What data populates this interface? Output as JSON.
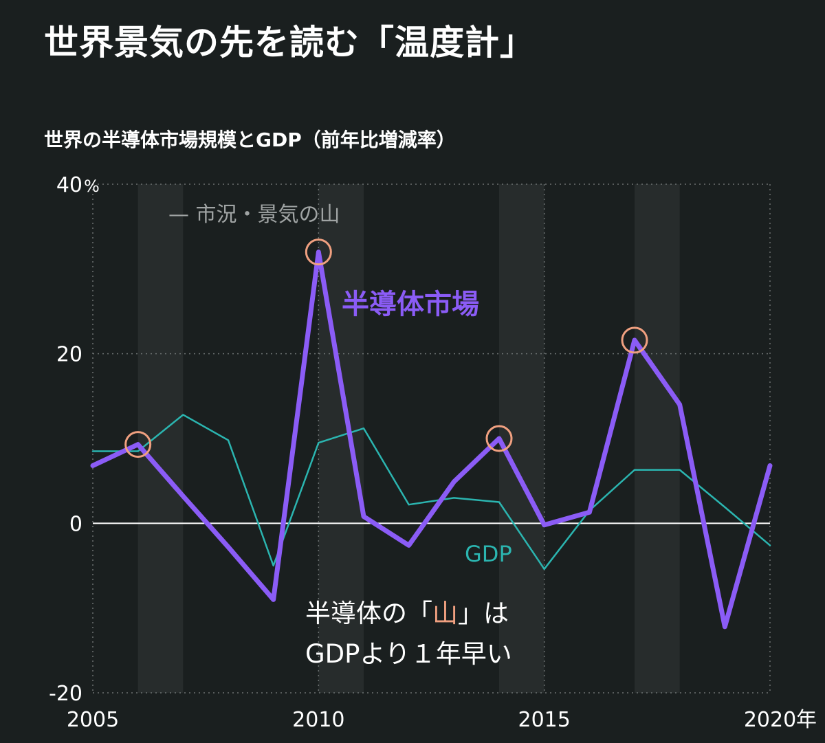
{
  "title": "世界景気の先を読む「温度計」",
  "subtitle": "世界の半導体市場規模とGDP（前年比増減率）",
  "chart_data": {
    "type": "line",
    "x": [
      2005,
      2006,
      2007,
      2008,
      2009,
      2010,
      2011,
      2012,
      2013,
      2014,
      2015,
      2016,
      2017,
      2018,
      2019,
      2020
    ],
    "xlim": [
      2005,
      2020
    ],
    "ylim": [
      -20,
      40
    ],
    "yticks": [
      40,
      20,
      0,
      -20
    ],
    "ytick_labels": [
      "40",
      "20",
      "0",
      "-20"
    ],
    "ytick_unit": "%",
    "xticks": [
      2005,
      2010,
      2015,
      2020
    ],
    "xtick_labels": [
      "2005",
      "2010",
      "2015",
      "2020"
    ],
    "x_unit": "年",
    "series": [
      {
        "name": "半導体市場",
        "color": "#8b5cf6",
        "values": [
          6.8,
          9.3,
          3.2,
          -2.8,
          -9.0,
          32.0,
          0.8,
          -2.6,
          4.9,
          10.0,
          -0.2,
          1.3,
          21.6,
          14.0,
          -12.2,
          6.8
        ]
      },
      {
        "name": "GDP",
        "color": "#2bb5b0",
        "values": [
          8.5,
          8.5,
          12.8,
          9.8,
          -5.0,
          9.5,
          11.2,
          2.2,
          3.0,
          2.5,
          -5.4,
          1.5,
          6.3,
          6.3,
          1.9,
          -2.6
        ]
      }
    ],
    "shaded_ranges": [
      [
        2006,
        2007
      ],
      [
        2010,
        2011
      ],
      [
        2014,
        2015
      ],
      [
        2017,
        2018
      ]
    ],
    "peak_markers": [
      2006,
      2010,
      2014,
      2017
    ],
    "legend": {
      "shaded_label": "市況・景気の山",
      "semiconductor_label": "半導体市場",
      "gdp_label": "GDP"
    },
    "annotation": {
      "line1_before": "半導体の「",
      "line1_highlight": "山",
      "line1_after": "」は",
      "line2": "GDPより１年早い"
    },
    "colors": {
      "background": "#1a1f1f",
      "shade": "#272c2c",
      "grid": "#6c7171",
      "zero_line": "#ffffff",
      "peak_circle": "#f0a080",
      "annotation_highlight": "#f0a080",
      "legend_shade": "#a0a4a4"
    }
  }
}
